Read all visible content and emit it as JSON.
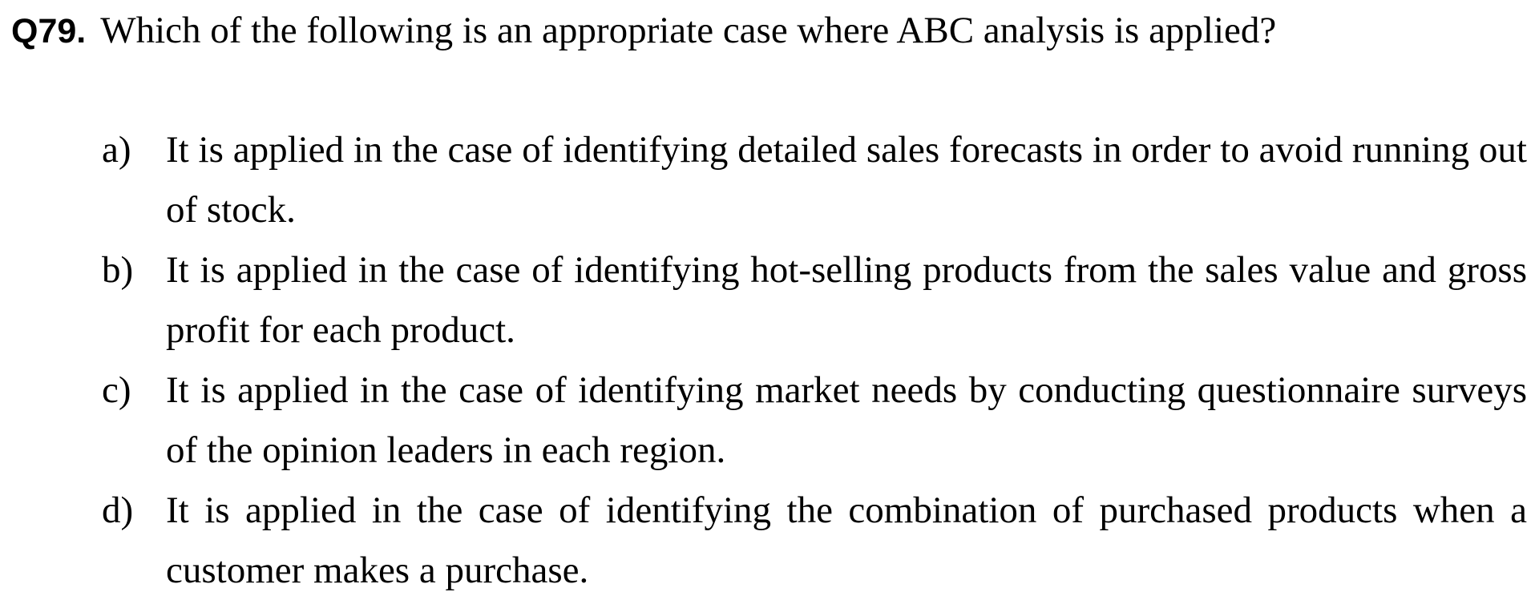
{
  "question": {
    "number": "Q79.",
    "text": "Which of the following is an appropriate case where ABC analysis is applied?"
  },
  "options": [
    {
      "letter": "a)",
      "text": "It is applied in the case of identifying detailed sales forecasts in order to avoid running out of stock."
    },
    {
      "letter": "b)",
      "text": "It is applied in the case of identifying hot-selling products from the sales value and gross profit for each product."
    },
    {
      "letter": "c)",
      "text": "It is applied in the case of identifying market needs by conducting questionnaire surveys of the opinion leaders in each region."
    },
    {
      "letter": "d)",
      "text": "It is applied in the case of identifying the combination of purchased products when a customer makes a purchase."
    }
  ]
}
